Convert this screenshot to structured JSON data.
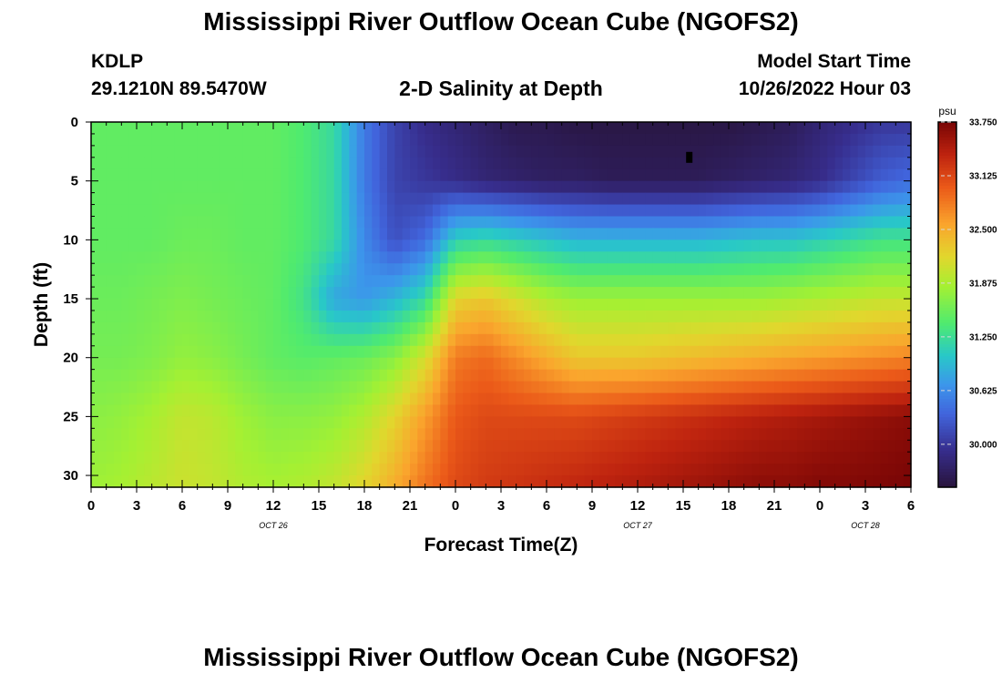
{
  "header": {
    "title": "Mississippi River Outflow Ocean Cube (NGOFS2)",
    "station": "KDLP",
    "coordinates": "29.1210N  89.5470W",
    "subtitle": "2-D Salinity at Depth",
    "start_label": "Model Start Time",
    "start_value": "10/26/2022 Hour 03"
  },
  "footer": {
    "title": "Mississippi River Outflow Ocean Cube (NGOFS2)"
  },
  "chart_data": {
    "type": "heatmap",
    "xlabel": "Forecast Time(Z)",
    "ylabel": "Depth (ft)",
    "x_unit": "forecast hour",
    "xlim": [
      0,
      54
    ],
    "ylim": [
      0,
      31
    ],
    "y_inverted": true,
    "x_ticks": [
      {
        "h": 0,
        "label": "0"
      },
      {
        "h": 3,
        "label": "3"
      },
      {
        "h": 6,
        "label": "6"
      },
      {
        "h": 9,
        "label": "9"
      },
      {
        "h": 12,
        "label": "12"
      },
      {
        "h": 15,
        "label": "15"
      },
      {
        "h": 18,
        "label": "18"
      },
      {
        "h": 21,
        "label": "21"
      },
      {
        "h": 24,
        "label": "0"
      },
      {
        "h": 27,
        "label": "3"
      },
      {
        "h": 30,
        "label": "6"
      },
      {
        "h": 33,
        "label": "9"
      },
      {
        "h": 36,
        "label": "12"
      },
      {
        "h": 39,
        "label": "15"
      },
      {
        "h": 42,
        "label": "18"
      },
      {
        "h": 45,
        "label": "21"
      },
      {
        "h": 48,
        "label": "0"
      },
      {
        "h": 51,
        "label": "3"
      },
      {
        "h": 54,
        "label": "6"
      }
    ],
    "date_labels": [
      {
        "h": 12,
        "label": "OCT 26"
      },
      {
        "h": 36,
        "label": "OCT 27"
      },
      {
        "h": 51,
        "label": "OCT 28"
      }
    ],
    "y_ticks": [
      0,
      5,
      10,
      15,
      20,
      25,
      30
    ],
    "colorbar": {
      "unit": "psu",
      "min": 29.5,
      "max": 33.75,
      "tick_labels": [
        "33.750",
        "33.125",
        "32.500",
        "31.875",
        "31.250",
        "30.625",
        "30.000"
      ]
    },
    "grid": {
      "x_hours": [
        0,
        2,
        4,
        6,
        8,
        10,
        12,
        14,
        16,
        18,
        20,
        22,
        24,
        26,
        28,
        30,
        32,
        34,
        36,
        38,
        40,
        42,
        44,
        46,
        48,
        50,
        52,
        54
      ],
      "depths_ft": [
        0,
        5,
        10,
        15,
        20,
        25,
        31
      ]
    },
    "salinity_psu": [
      [
        31.5,
        31.5,
        31.5,
        31.5,
        31.5,
        31.5,
        31.5,
        31.4,
        31.2,
        30.5,
        30.1,
        29.9,
        29.8,
        29.7,
        29.6,
        29.6,
        29.55,
        29.55,
        29.55,
        29.55,
        29.55,
        29.55,
        29.6,
        29.65,
        29.8,
        29.9,
        30.0,
        30.0
      ],
      [
        31.5,
        31.5,
        31.5,
        31.5,
        31.5,
        31.5,
        31.5,
        31.4,
        31.2,
        30.5,
        30.1,
        30.0,
        29.9,
        29.8,
        29.75,
        29.7,
        29.7,
        29.65,
        29.65,
        29.65,
        29.65,
        29.7,
        29.75,
        29.8,
        29.9,
        30.1,
        30.3,
        30.4
      ],
      [
        31.5,
        31.5,
        31.5,
        31.55,
        31.55,
        31.5,
        31.5,
        31.4,
        31.2,
        30.6,
        30.2,
        30.4,
        31.1,
        31.2,
        31.1,
        31.0,
        30.9,
        30.9,
        30.9,
        30.9,
        30.9,
        30.95,
        31.0,
        31.0,
        31.1,
        31.2,
        31.3,
        31.3
      ],
      [
        31.55,
        31.55,
        31.6,
        31.65,
        31.6,
        31.55,
        31.5,
        31.3,
        30.8,
        30.7,
        30.9,
        31.2,
        32.2,
        32.3,
        32.1,
        31.9,
        31.8,
        31.8,
        31.8,
        31.8,
        31.8,
        31.8,
        31.8,
        31.85,
        31.9,
        31.95,
        32.0,
        32.0
      ],
      [
        31.6,
        31.6,
        31.65,
        31.75,
        31.7,
        31.6,
        31.5,
        31.45,
        31.5,
        31.55,
        31.7,
        32.1,
        32.8,
        32.9,
        32.7,
        32.5,
        32.3,
        32.3,
        32.3,
        32.35,
        32.4,
        32.45,
        32.5,
        32.55,
        32.6,
        32.65,
        32.7,
        32.75
      ],
      [
        31.7,
        31.75,
        31.85,
        32.0,
        31.95,
        31.8,
        31.7,
        31.7,
        31.75,
        31.9,
        32.2,
        32.6,
        33.0,
        33.1,
        33.1,
        33.1,
        33.1,
        33.15,
        33.2,
        33.25,
        33.3,
        33.35,
        33.4,
        33.45,
        33.5,
        33.55,
        33.6,
        33.65
      ],
      [
        31.8,
        31.85,
        31.95,
        32.05,
        32.0,
        31.9,
        31.85,
        31.9,
        32.0,
        32.2,
        32.5,
        32.85,
        33.1,
        33.2,
        33.25,
        33.3,
        33.35,
        33.4,
        33.45,
        33.5,
        33.55,
        33.6,
        33.65,
        33.65,
        33.7,
        33.7,
        33.72,
        33.75
      ]
    ],
    "marker": {
      "h": 39.4,
      "depth_ft": 3
    }
  }
}
